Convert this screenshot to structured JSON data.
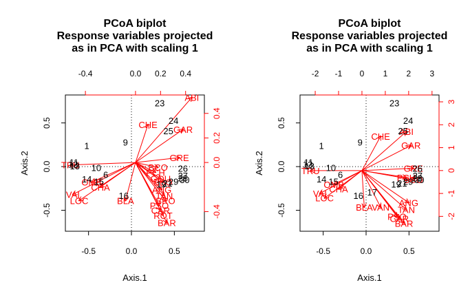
{
  "colors": {
    "site": "#000000",
    "variable": "#ff0000",
    "frame": "#000000"
  },
  "chart_data": [
    {
      "type": "scatter",
      "title": "PCoA biplot\nResponse variables projected\nas in PCA with scaling 1",
      "xlabel": "Axis.1",
      "ylabel": "Axis.2",
      "xlim": [
        -0.77,
        0.85
      ],
      "ylim": [
        -0.74,
        0.82
      ],
      "bottom_ticks": [
        -0.5,
        0.0,
        0.5
      ],
      "left_ticks": [
        -0.5,
        0.0,
        0.5
      ],
      "top_ticks": [
        "-0.4",
        "0.0",
        "0.2",
        "0.4"
      ],
      "top_tick_values": [
        -0.4,
        0.0,
        0.2,
        0.4
      ],
      "right_ticks": [
        "-0.4",
        "0.0",
        "0.2",
        "0.4"
      ],
      "right_tick_values": [
        -0.4,
        0.0,
        0.2,
        0.4
      ],
      "var_lim": [
        -0.56,
        0.55
      ],
      "sites": [
        {
          "label": "23",
          "x": 0.33,
          "y": 0.73
        },
        {
          "label": "24",
          "x": 0.49,
          "y": 0.53
        },
        {
          "label": "25",
          "x": 0.43,
          "y": 0.41
        },
        {
          "label": "9",
          "x": -0.07,
          "y": 0.28
        },
        {
          "label": "1",
          "x": -0.52,
          "y": 0.24
        },
        {
          "label": "11",
          "x": -0.67,
          "y": 0.05
        },
        {
          "label": "12",
          "x": -0.68,
          "y": 0.03
        },
        {
          "label": "13",
          "x": -0.66,
          "y": 0.01
        },
        {
          "label": "10",
          "x": -0.41,
          "y": -0.01
        },
        {
          "label": "6",
          "x": -0.3,
          "y": -0.09
        },
        {
          "label": "14",
          "x": -0.52,
          "y": -0.14
        },
        {
          "label": "15",
          "x": -0.38,
          "y": -0.17
        },
        {
          "label": "16",
          "x": -0.09,
          "y": -0.33
        },
        {
          "label": "26",
          "x": 0.6,
          "y": -0.02
        },
        {
          "label": "27",
          "x": 0.6,
          "y": -0.1
        },
        {
          "label": "28",
          "x": 0.6,
          "y": -0.13
        },
        {
          "label": "29",
          "x": 0.49,
          "y": -0.17
        },
        {
          "label": "30",
          "x": 0.62,
          "y": -0.15
        },
        {
          "label": "19",
          "x": 0.35,
          "y": -0.2
        },
        {
          "label": "21",
          "x": 0.42,
          "y": -0.19
        }
      ],
      "variables": [
        {
          "label": "ABI",
          "x": 0.45,
          "y": 0.53
        },
        {
          "label": "GAR",
          "x": 0.38,
          "y": 0.27
        },
        {
          "label": "CHE",
          "x": 0.1,
          "y": 0.31
        },
        {
          "label": "GRE",
          "x": 0.35,
          "y": 0.04
        },
        {
          "label": "TRU",
          "x": -0.52,
          "y": -0.02
        },
        {
          "label": "VAI",
          "x": -0.5,
          "y": -0.26
        },
        {
          "label": "LOC",
          "x": -0.45,
          "y": -0.31
        },
        {
          "label": "OMB",
          "x": -0.35,
          "y": -0.16
        },
        {
          "label": "CHA",
          "x": -0.28,
          "y": -0.2
        },
        {
          "label": "BLA",
          "x": -0.08,
          "y": -0.31
        },
        {
          "label": "BCO",
          "x": 0.18,
          "y": -0.04
        },
        {
          "label": "PCH",
          "x": 0.16,
          "y": -0.08
        },
        {
          "label": "GOU",
          "x": 0.2,
          "y": -0.13
        },
        {
          "label": "BBO",
          "x": 0.22,
          "y": -0.16
        },
        {
          "label": "ANG",
          "x": 0.21,
          "y": -0.22
        },
        {
          "label": "TAN",
          "x": 0.23,
          "y": -0.27
        },
        {
          "label": "BRO",
          "x": 0.24,
          "y": -0.31
        },
        {
          "label": "PSO",
          "x": 0.19,
          "y": -0.35
        },
        {
          "label": "CAR",
          "x": 0.2,
          "y": -0.39
        },
        {
          "label": "ROT",
          "x": 0.22,
          "y": -0.43
        },
        {
          "label": "BAR",
          "x": 0.25,
          "y": -0.49
        }
      ]
    },
    {
      "type": "scatter",
      "title": "PCoA biplot\nResponse variables projected\nas in PCA with scaling 1",
      "xlabel": "Axis.1",
      "ylabel": "Axis.2",
      "xlim": [
        -0.77,
        0.85
      ],
      "ylim": [
        -0.74,
        0.82
      ],
      "bottom_ticks": [
        -0.5,
        0.0,
        0.5
      ],
      "left_ticks": [
        -0.5,
        0.0,
        0.5
      ],
      "top_ticks": [
        "-2",
        "-1",
        "0",
        "1",
        "2",
        "3"
      ],
      "top_tick_values": [
        -2,
        -1,
        0,
        1,
        2,
        3
      ],
      "right_ticks": [
        "-2",
        "-1",
        "0",
        "1",
        "2",
        "3"
      ],
      "right_tick_values": [
        -2,
        -1,
        0,
        1,
        2,
        3
      ],
      "var_lim": [
        -2.65,
        3.3
      ],
      "sites": [
        {
          "label": "23",
          "x": 0.33,
          "y": 0.73
        },
        {
          "label": "24",
          "x": 0.49,
          "y": 0.53
        },
        {
          "label": "25",
          "x": 0.43,
          "y": 0.41
        },
        {
          "label": "9",
          "x": -0.07,
          "y": 0.28
        },
        {
          "label": "1",
          "x": -0.52,
          "y": 0.24
        },
        {
          "label": "11",
          "x": -0.67,
          "y": 0.05
        },
        {
          "label": "12",
          "x": -0.68,
          "y": 0.03
        },
        {
          "label": "13",
          "x": -0.66,
          "y": 0.01
        },
        {
          "label": "10",
          "x": -0.41,
          "y": -0.01
        },
        {
          "label": "6",
          "x": -0.3,
          "y": -0.09
        },
        {
          "label": "14",
          "x": -0.52,
          "y": -0.14
        },
        {
          "label": "15",
          "x": -0.38,
          "y": -0.17
        },
        {
          "label": "16",
          "x": -0.09,
          "y": -0.33
        },
        {
          "label": "26",
          "x": 0.6,
          "y": -0.02
        },
        {
          "label": "27",
          "x": 0.6,
          "y": -0.1
        },
        {
          "label": "28",
          "x": 0.6,
          "y": -0.13
        },
        {
          "label": "29",
          "x": 0.49,
          "y": -0.17
        },
        {
          "label": "30",
          "x": 0.62,
          "y": -0.15
        },
        {
          "label": "19",
          "x": 0.35,
          "y": -0.2
        },
        {
          "label": "21",
          "x": 0.42,
          "y": -0.19
        },
        {
          "label": "17",
          "x": 0.07,
          "y": -0.29
        }
      ],
      "variables": [
        {
          "label": "ABI",
          "x": 1.9,
          "y": 1.7
        },
        {
          "label": "GAR",
          "x": 2.1,
          "y": 1.1
        },
        {
          "label": "CHE",
          "x": 0.8,
          "y": 1.5
        },
        {
          "label": "GRE",
          "x": 2.2,
          "y": 0.1
        },
        {
          "label": "TRU",
          "x": -2.2,
          "y": 0.0
        },
        {
          "label": "VAI",
          "x": -1.8,
          "y": -1.0
        },
        {
          "label": "LOC",
          "x": -1.6,
          "y": -1.2
        },
        {
          "label": "OMB",
          "x": -1.2,
          "y": -0.6
        },
        {
          "label": "CHA",
          "x": -1.0,
          "y": -0.8
        },
        {
          "label": "BLA",
          "x": 0.1,
          "y": -1.6
        },
        {
          "label": "VAN",
          "x": 0.8,
          "y": -1.6
        },
        {
          "label": "PCH",
          "x": 1.9,
          "y": -0.3
        },
        {
          "label": "BCO",
          "x": 2.2,
          "y": -0.4
        },
        {
          "label": "ANG",
          "x": 2.0,
          "y": -1.4
        },
        {
          "label": "TAN",
          "x": 1.9,
          "y": -1.7
        },
        {
          "label": "PSO",
          "x": 1.5,
          "y": -2.0
        },
        {
          "label": "CAR",
          "x": 1.6,
          "y": -2.1
        },
        {
          "label": "BAR",
          "x": 1.8,
          "y": -2.3
        }
      ]
    }
  ]
}
